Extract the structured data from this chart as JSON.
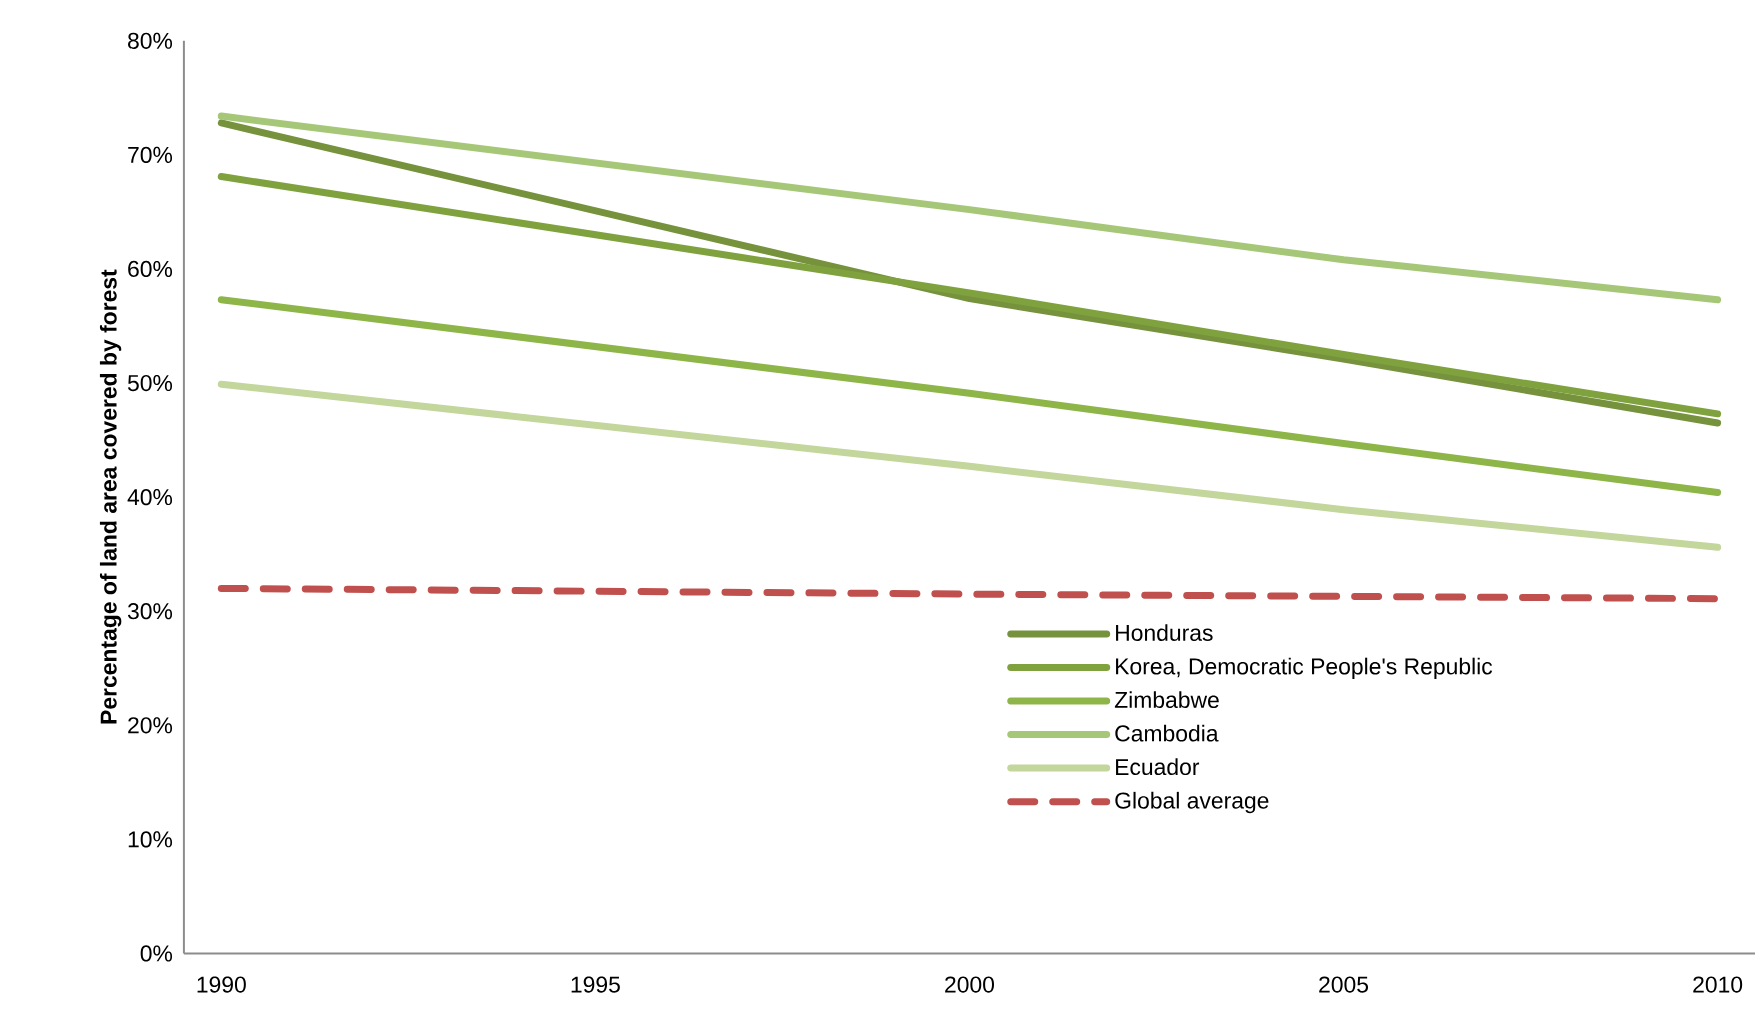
{
  "chart_data": {
    "type": "line",
    "ylabel": "Percentage of land area covered by forest",
    "x": [
      1990,
      2000,
      2005,
      2010
    ],
    "xlim": [
      1989.5,
      2010.5
    ],
    "xticks": [
      1990,
      1995,
      2000,
      2005,
      2010
    ],
    "ylim": [
      0,
      80
    ],
    "yticks": [
      {
        "value": 0,
        "label": "0%"
      },
      {
        "value": 10,
        "label": "10%"
      },
      {
        "value": 20,
        "label": "20%"
      },
      {
        "value": 30,
        "label": "30%"
      },
      {
        "value": 40,
        "label": "40%"
      },
      {
        "value": 50,
        "label": "50%"
      },
      {
        "value": 60,
        "label": "60%"
      },
      {
        "value": 70,
        "label": "70%"
      },
      {
        "value": 80,
        "label": "80%"
      }
    ],
    "grid": false,
    "legend": "bottom right",
    "marker": "none",
    "series": [
      {
        "name": "Honduras",
        "color": "#76923c",
        "values": [
          72.8,
          57.4,
          52.1,
          46.5
        ]
      },
      {
        "name": "Korea, Democratic People's Republic",
        "color": "#7fa23f",
        "values": [
          68.1,
          57.9,
          52.5,
          47.3
        ]
      },
      {
        "name": "Zimbabwe",
        "color": "#8db548",
        "values": [
          57.3,
          49.1,
          44.7,
          40.4
        ]
      },
      {
        "name": "Cambodia",
        "color": "#a5c777",
        "values": [
          73.4,
          65.2,
          60.8,
          57.3
        ]
      },
      {
        "name": "Ecuador",
        "color": "#c3d69b",
        "values": [
          49.9,
          42.7,
          38.9,
          35.6
        ]
      },
      {
        "name": "Global average",
        "color": "#c0504d",
        "line_style": "dashed",
        "values": [
          32.0,
          31.5,
          31.3,
          31.1
        ]
      }
    ]
  }
}
